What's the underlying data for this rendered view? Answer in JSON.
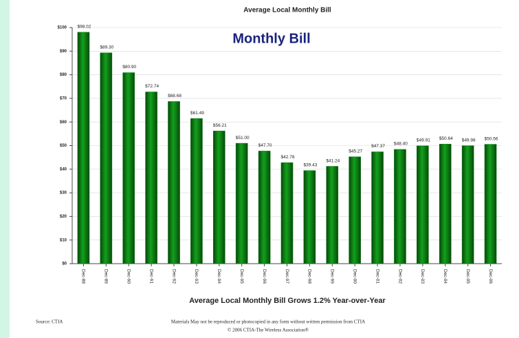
{
  "chart_data": {
    "type": "bar",
    "title": "Average Local Monthly Bill",
    "annotation": "Monthly Bill",
    "subtitle": "Average Local Monthly Bill Grows 1.2% Year-over-Year",
    "source": "Source: CTIA",
    "notice": "Materials May not be reproduced or photocopied in any form without written permission from CTIA",
    "copyright": "© 2006 CTIA-The Wireless Association®",
    "categories": [
      "Dec-88",
      "Dec-89",
      "Dec-90",
      "Dec-91",
      "Dec-92",
      "Dec-93",
      "Dec-94",
      "Dec-95",
      "Dec-96",
      "Dec-97",
      "Dec-98",
      "Dec-99",
      "Dec-00",
      "Dec-01",
      "Dec-02",
      "Dec-03",
      "Dec-04",
      "Dec-05",
      "Dec-06"
    ],
    "values": [
      98.02,
      89.3,
      80.9,
      72.74,
      68.68,
      61.49,
      56.21,
      51.0,
      47.7,
      42.78,
      39.43,
      41.24,
      45.27,
      47.37,
      48.4,
      49.91,
      50.64,
      49.98,
      50.56
    ],
    "value_labels": [
      "$98.02",
      "$89.30",
      "$80.90",
      "$72.74",
      "$68.68",
      "$61.49",
      "$56.21",
      "$51.00",
      "$47.70",
      "$42.78",
      "$39.43",
      "$41.24",
      "$45.27",
      "$47.37",
      "$48.40",
      "$49.91",
      "$50.64",
      "$49.98",
      "$50.56"
    ],
    "color": "#0b7d12",
    "ylim": [
      0,
      100
    ],
    "yticks": [
      {
        "value": 0,
        "label": "$0"
      },
      {
        "value": 10,
        "label": "$10"
      },
      {
        "value": 20,
        "label": "$20"
      },
      {
        "value": 30,
        "label": "$30"
      },
      {
        "value": 40,
        "label": "$40"
      },
      {
        "value": 50,
        "label": "$50"
      },
      {
        "value": 60,
        "label": "$60"
      },
      {
        "value": 70,
        "label": "$70"
      },
      {
        "value": 80,
        "label": "$80"
      },
      {
        "value": 90,
        "label": "$90"
      },
      {
        "value": 100,
        "label": "$100"
      }
    ],
    "grid": true
  }
}
